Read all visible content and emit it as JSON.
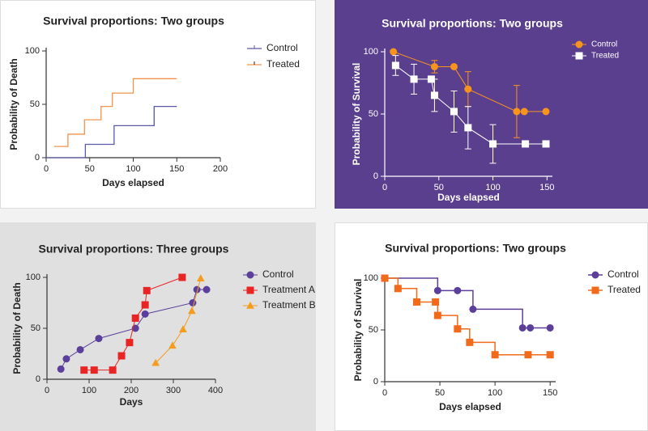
{
  "chart_data": [
    {
      "type": "line",
      "step": true,
      "title": "Survival proportions: Two groups",
      "xlabel": "Days elapsed",
      "ylabel": "Probability of Death",
      "xlim": [
        0,
        200
      ],
      "ylim": [
        0,
        100
      ],
      "xticks": [
        0,
        50,
        100,
        150,
        200
      ],
      "yticks": [
        0,
        50,
        100
      ],
      "series": [
        {
          "name": "Control",
          "color": "#5a5aa8",
          "x": [
            0,
            45,
            78,
            124,
            150
          ],
          "values": [
            0,
            12.5,
            30,
            48,
            48
          ]
        },
        {
          "name": "Treated",
          "color": "#f0944e",
          "x": [
            9,
            25,
            44,
            63,
            76,
            100,
            150
          ],
          "values": [
            10.5,
            22,
            35.5,
            48,
            60.5,
            74,
            74
          ]
        }
      ]
    },
    {
      "type": "line",
      "step": false,
      "title": "Survival proportions: Two groups",
      "xlabel": "Days elapsed",
      "ylabel": "Probability of Survival",
      "xlim": [
        0,
        155
      ],
      "ylim": [
        0,
        100
      ],
      "xticks": [
        0,
        50,
        100,
        150
      ],
      "yticks": [
        0,
        50,
        100
      ],
      "series": [
        {
          "name": "Control",
          "color": "#f7941d",
          "marker": "circle",
          "x": [
            8,
            46,
            64,
            77,
            122,
            129,
            149
          ],
          "values": [
            100,
            88,
            88,
            70,
            52,
            52,
            52
          ],
          "errors": [
            0,
            5,
            0,
            14,
            21,
            0,
            0
          ]
        },
        {
          "name": "Treated",
          "color": "#ffffff",
          "marker": "square",
          "x": [
            10,
            27,
            43,
            46,
            64,
            77,
            100,
            130,
            149
          ],
          "values": [
            89,
            78,
            78,
            65,
            52,
            39,
            26,
            26,
            26
          ],
          "errors": [
            8,
            12,
            0,
            13,
            16.5,
            17,
            15.5,
            0,
            0
          ]
        }
      ]
    },
    {
      "type": "line",
      "step": false,
      "title": "Survival proportions: Three groups",
      "xlabel": "Days",
      "ylabel": "Probability of Death",
      "xlim": [
        0,
        400
      ],
      "ylim": [
        0,
        100
      ],
      "xticks": [
        0,
        100,
        200,
        300,
        400
      ],
      "yticks": [
        0,
        50,
        100
      ],
      "series": [
        {
          "name": "Control",
          "color": "#5b3f9a",
          "marker": "circle",
          "x": [
            33,
            46,
            79,
            123,
            210,
            233,
            346,
            356,
            379
          ],
          "values": [
            10,
            20,
            29,
            40,
            50,
            64,
            75,
            88,
            88
          ]
        },
        {
          "name": "Treatment A",
          "color": "#e82424",
          "marker": "square",
          "x": [
            88,
            112,
            156,
            177,
            196,
            210,
            233,
            237,
            321
          ],
          "values": [
            9,
            9,
            9,
            23,
            36,
            60,
            73,
            87,
            100
          ]
        },
        {
          "name": "Treatment B",
          "color": "#f39c1f",
          "marker": "triangle",
          "x": [
            258,
            298,
            323,
            344,
            365
          ],
          "values": [
            16,
            33,
            49,
            67,
            99
          ]
        }
      ]
    },
    {
      "type": "line",
      "step": true,
      "title": "Survival proportions: Two groups",
      "xlabel": "Days elapsed",
      "ylabel": "Probability of Survival",
      "xlim": [
        0,
        155
      ],
      "ylim": [
        0,
        100
      ],
      "xticks": [
        0,
        50,
        100,
        150
      ],
      "yticks": [
        0,
        50,
        100
      ],
      "series": [
        {
          "name": "Control",
          "color": "#5b3f9a",
          "marker": "circle",
          "x": [
            0,
            48,
            66,
            80,
            125,
            132,
            150
          ],
          "values": [
            100,
            88,
            88,
            70,
            52,
            52,
            52
          ]
        },
        {
          "name": "Treated",
          "color": "#f26a1b",
          "marker": "square",
          "x": [
            0,
            12,
            29,
            46,
            48,
            66,
            77,
            100,
            130,
            150
          ],
          "values": [
            100,
            90,
            77,
            77,
            64,
            51,
            38,
            26,
            26,
            26
          ]
        }
      ]
    }
  ]
}
